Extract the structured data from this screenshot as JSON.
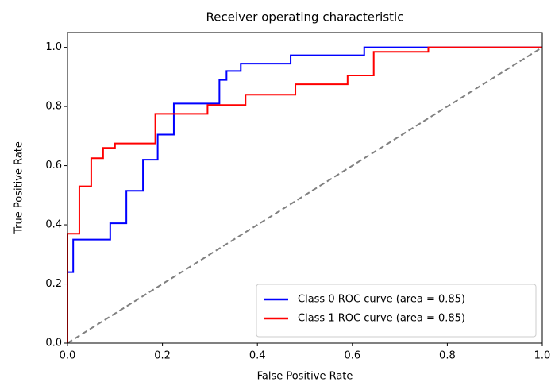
{
  "chart_data": {
    "type": "line",
    "title": "Receiver operating characteristic",
    "xlabel": "False Positive Rate",
    "ylabel": "True Positive Rate",
    "xlim": [
      0,
      1
    ],
    "ylim": [
      0,
      1.05
    ],
    "xticks": [
      {
        "value": 0,
        "label": "0.0"
      },
      0.2,
      0.4,
      0.6,
      0.8,
      {
        "value": 1,
        "label": "1.0"
      }
    ],
    "yticks": [
      {
        "value": 0,
        "label": "0.0"
      },
      0.2,
      0.4,
      0.6,
      0.8,
      {
        "value": 1,
        "label": "1.0"
      }
    ],
    "legend": "lower right",
    "series": [
      {
        "name": "Class 0 ROC curve (area = 0.85)",
        "color": "#0000ff",
        "x": [
          0,
          0,
          0.012,
          0.012,
          0.09,
          0.09,
          0.124,
          0.124,
          0.159,
          0.159,
          0.19,
          0.19,
          0.224,
          0.224,
          0.32,
          0.32,
          0.335,
          0.335,
          0.365,
          0.365,
          0.47,
          0.47,
          0.625,
          0.625,
          1
        ],
        "y": [
          0,
          0.24,
          0.24,
          0.35,
          0.35,
          0.405,
          0.405,
          0.515,
          0.515,
          0.62,
          0.62,
          0.705,
          0.705,
          0.81,
          0.81,
          0.89,
          0.89,
          0.92,
          0.92,
          0.945,
          0.945,
          0.973,
          0.973,
          1,
          1
        ]
      },
      {
        "name": "Class 1 ROC curve (area = 0.85)",
        "color": "#ff0000",
        "x": [
          0,
          0,
          0.025,
          0.025,
          0.05,
          0.05,
          0.075,
          0.075,
          0.1,
          0.1,
          0.185,
          0.185,
          0.295,
          0.295,
          0.375,
          0.375,
          0.48,
          0.48,
          0.59,
          0.59,
          0.645,
          0.645,
          0.76,
          0.76,
          1
        ],
        "y": [
          0,
          0.37,
          0.37,
          0.53,
          0.53,
          0.625,
          0.625,
          0.66,
          0.66,
          0.675,
          0.675,
          0.775,
          0.775,
          0.805,
          0.805,
          0.84,
          0.84,
          0.875,
          0.875,
          0.905,
          0.905,
          0.985,
          0.985,
          1,
          1
        ]
      }
    ],
    "diagonal": {
      "x": [
        0,
        1
      ],
      "y": [
        0,
        1
      ],
      "color": "#808080"
    }
  }
}
